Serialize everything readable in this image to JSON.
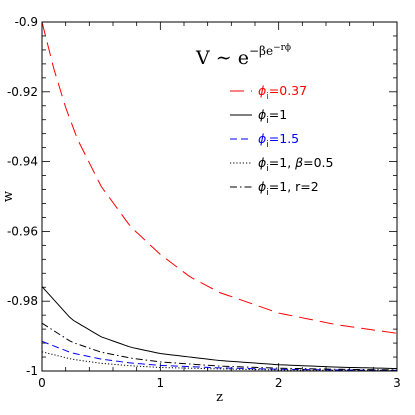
{
  "chart_data": {
    "type": "line",
    "xlabel": "z",
    "ylabel": "w",
    "xlim": [
      0,
      3
    ],
    "ylim": [
      -1,
      -0.9
    ],
    "x_ticks": [
      "0",
      "1",
      "2",
      "3"
    ],
    "y_ticks": [
      "-1",
      "-0.98",
      "-0.96",
      "-0.94",
      "-0.92",
      "-0.9"
    ],
    "grid": false,
    "legend_position": "top-right",
    "formula": {
      "lhs": "V ∼ e",
      "exponent": "−βe",
      "exponent_sup": "−rϕ"
    },
    "series": [
      {
        "name": "ϕi=0.37",
        "label_parts": {
          "phi": "ϕ",
          "sub": "i",
          "rest": "=0.37"
        },
        "color": "#ff0000",
        "dash": "long-dash",
        "x": [
          0,
          0.1,
          0.2,
          0.3,
          0.5,
          0.75,
          1.0,
          1.25,
          1.5,
          2.0,
          2.5,
          3.0
        ],
        "y": [
          -0.9,
          -0.9134,
          -0.9245,
          -0.9336,
          -0.9471,
          -0.9587,
          -0.9666,
          -0.973,
          -0.9775,
          -0.9834,
          -0.9868,
          -0.9892
        ]
      },
      {
        "name": "ϕi=1",
        "label_parts": {
          "phi": "ϕ",
          "sub": "i",
          "rest": "=1"
        },
        "color": "#000000",
        "dash": "solid",
        "x": [
          0,
          0.25,
          0.5,
          0.75,
          1.0,
          1.5,
          2.0,
          2.5,
          3.0
        ],
        "y": [
          -0.9758,
          -0.9852,
          -0.9902,
          -0.9932,
          -0.995,
          -0.997,
          -0.9982,
          -0.9989,
          -0.9993
        ]
      },
      {
        "name": "ϕi=1.5",
        "label_parts": {
          "phi": "ϕ",
          "sub": "i",
          "rest": "=1.5"
        },
        "color": "#0000ff",
        "dash": "short-dash",
        "x": [
          0,
          0.25,
          0.5,
          0.75,
          1.0,
          1.5,
          2.0,
          2.5,
          3.0
        ],
        "y": [
          -0.9915,
          -0.9948,
          -0.9966,
          -0.9977,
          -0.9984,
          -0.9991,
          -0.9995,
          -0.9997,
          -0.9998
        ]
      },
      {
        "name": "ϕi=1, β=0.5",
        "label_parts": {
          "phi": "ϕ",
          "sub": "i",
          "rest": "=1,  ",
          "beta": "β",
          "rest2": "=0.5"
        },
        "color": "#000000",
        "dash": "dotted",
        "x": [
          0,
          0.25,
          0.5,
          0.75,
          1.0,
          1.5,
          2.0,
          2.5,
          3.0
        ],
        "y": [
          -0.9945,
          -0.9966,
          -0.9978,
          -0.9985,
          -0.999,
          -0.9994,
          -0.9997,
          -0.9998,
          -0.9999
        ]
      },
      {
        "name": "ϕi=1, r=2",
        "label_parts": {
          "phi": "ϕ",
          "sub": "i",
          "rest": "=1,  r=2"
        },
        "color": "#000000",
        "dash": "dash-dot",
        "x": [
          0,
          0.25,
          0.5,
          0.75,
          1.0,
          1.5,
          2.0,
          2.5,
          3.0
        ],
        "y": [
          -0.9863,
          -0.9917,
          -0.9946,
          -0.9963,
          -0.9974,
          -0.9986,
          -0.9992,
          -0.9995,
          -0.9997
        ]
      }
    ]
  }
}
